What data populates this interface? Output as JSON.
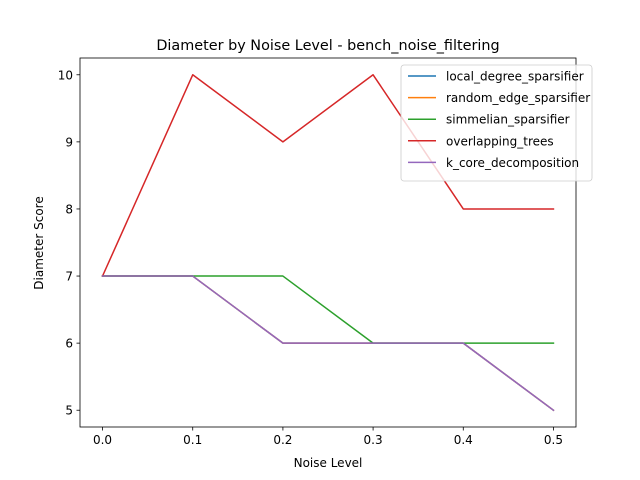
{
  "chart_data": {
    "type": "line",
    "title": "Diameter by Noise Level - bench_noise_filtering",
    "xlabel": "Noise Level",
    "ylabel": "Diameter Score",
    "x": [
      0.0,
      0.1,
      0.2,
      0.3,
      0.4,
      0.5
    ],
    "x_tick_labels": [
      "0.0",
      "0.1",
      "0.2",
      "0.3",
      "0.4",
      "0.5"
    ],
    "y_ticks": [
      5,
      6,
      7,
      8,
      9,
      10
    ],
    "y_tick_labels": [
      "5",
      "6",
      "7",
      "8",
      "9",
      "10"
    ],
    "xlim": [
      -0.025,
      0.525
    ],
    "ylim": [
      4.75,
      10.25
    ],
    "grid": false,
    "legend_position": "top-right",
    "series": [
      {
        "name": "local_degree_sparsifier",
        "color": "#1f77b4",
        "values": [
          7,
          7,
          6,
          6,
          6,
          5
        ]
      },
      {
        "name": "random_edge_sparsifier",
        "color": "#ff7f0e",
        "values": [
          7,
          7,
          6,
          6,
          6,
          5
        ]
      },
      {
        "name": "simmelian_sparsifier",
        "color": "#2ca02c",
        "values": [
          7,
          7,
          7,
          6,
          6,
          6
        ]
      },
      {
        "name": "overlapping_trees",
        "color": "#d62728",
        "values": [
          7,
          10,
          9,
          10,
          8,
          8
        ]
      },
      {
        "name": "k_core_decomposition",
        "color": "#9467bd",
        "values": [
          7,
          7,
          6,
          6,
          6,
          5
        ]
      }
    ]
  }
}
